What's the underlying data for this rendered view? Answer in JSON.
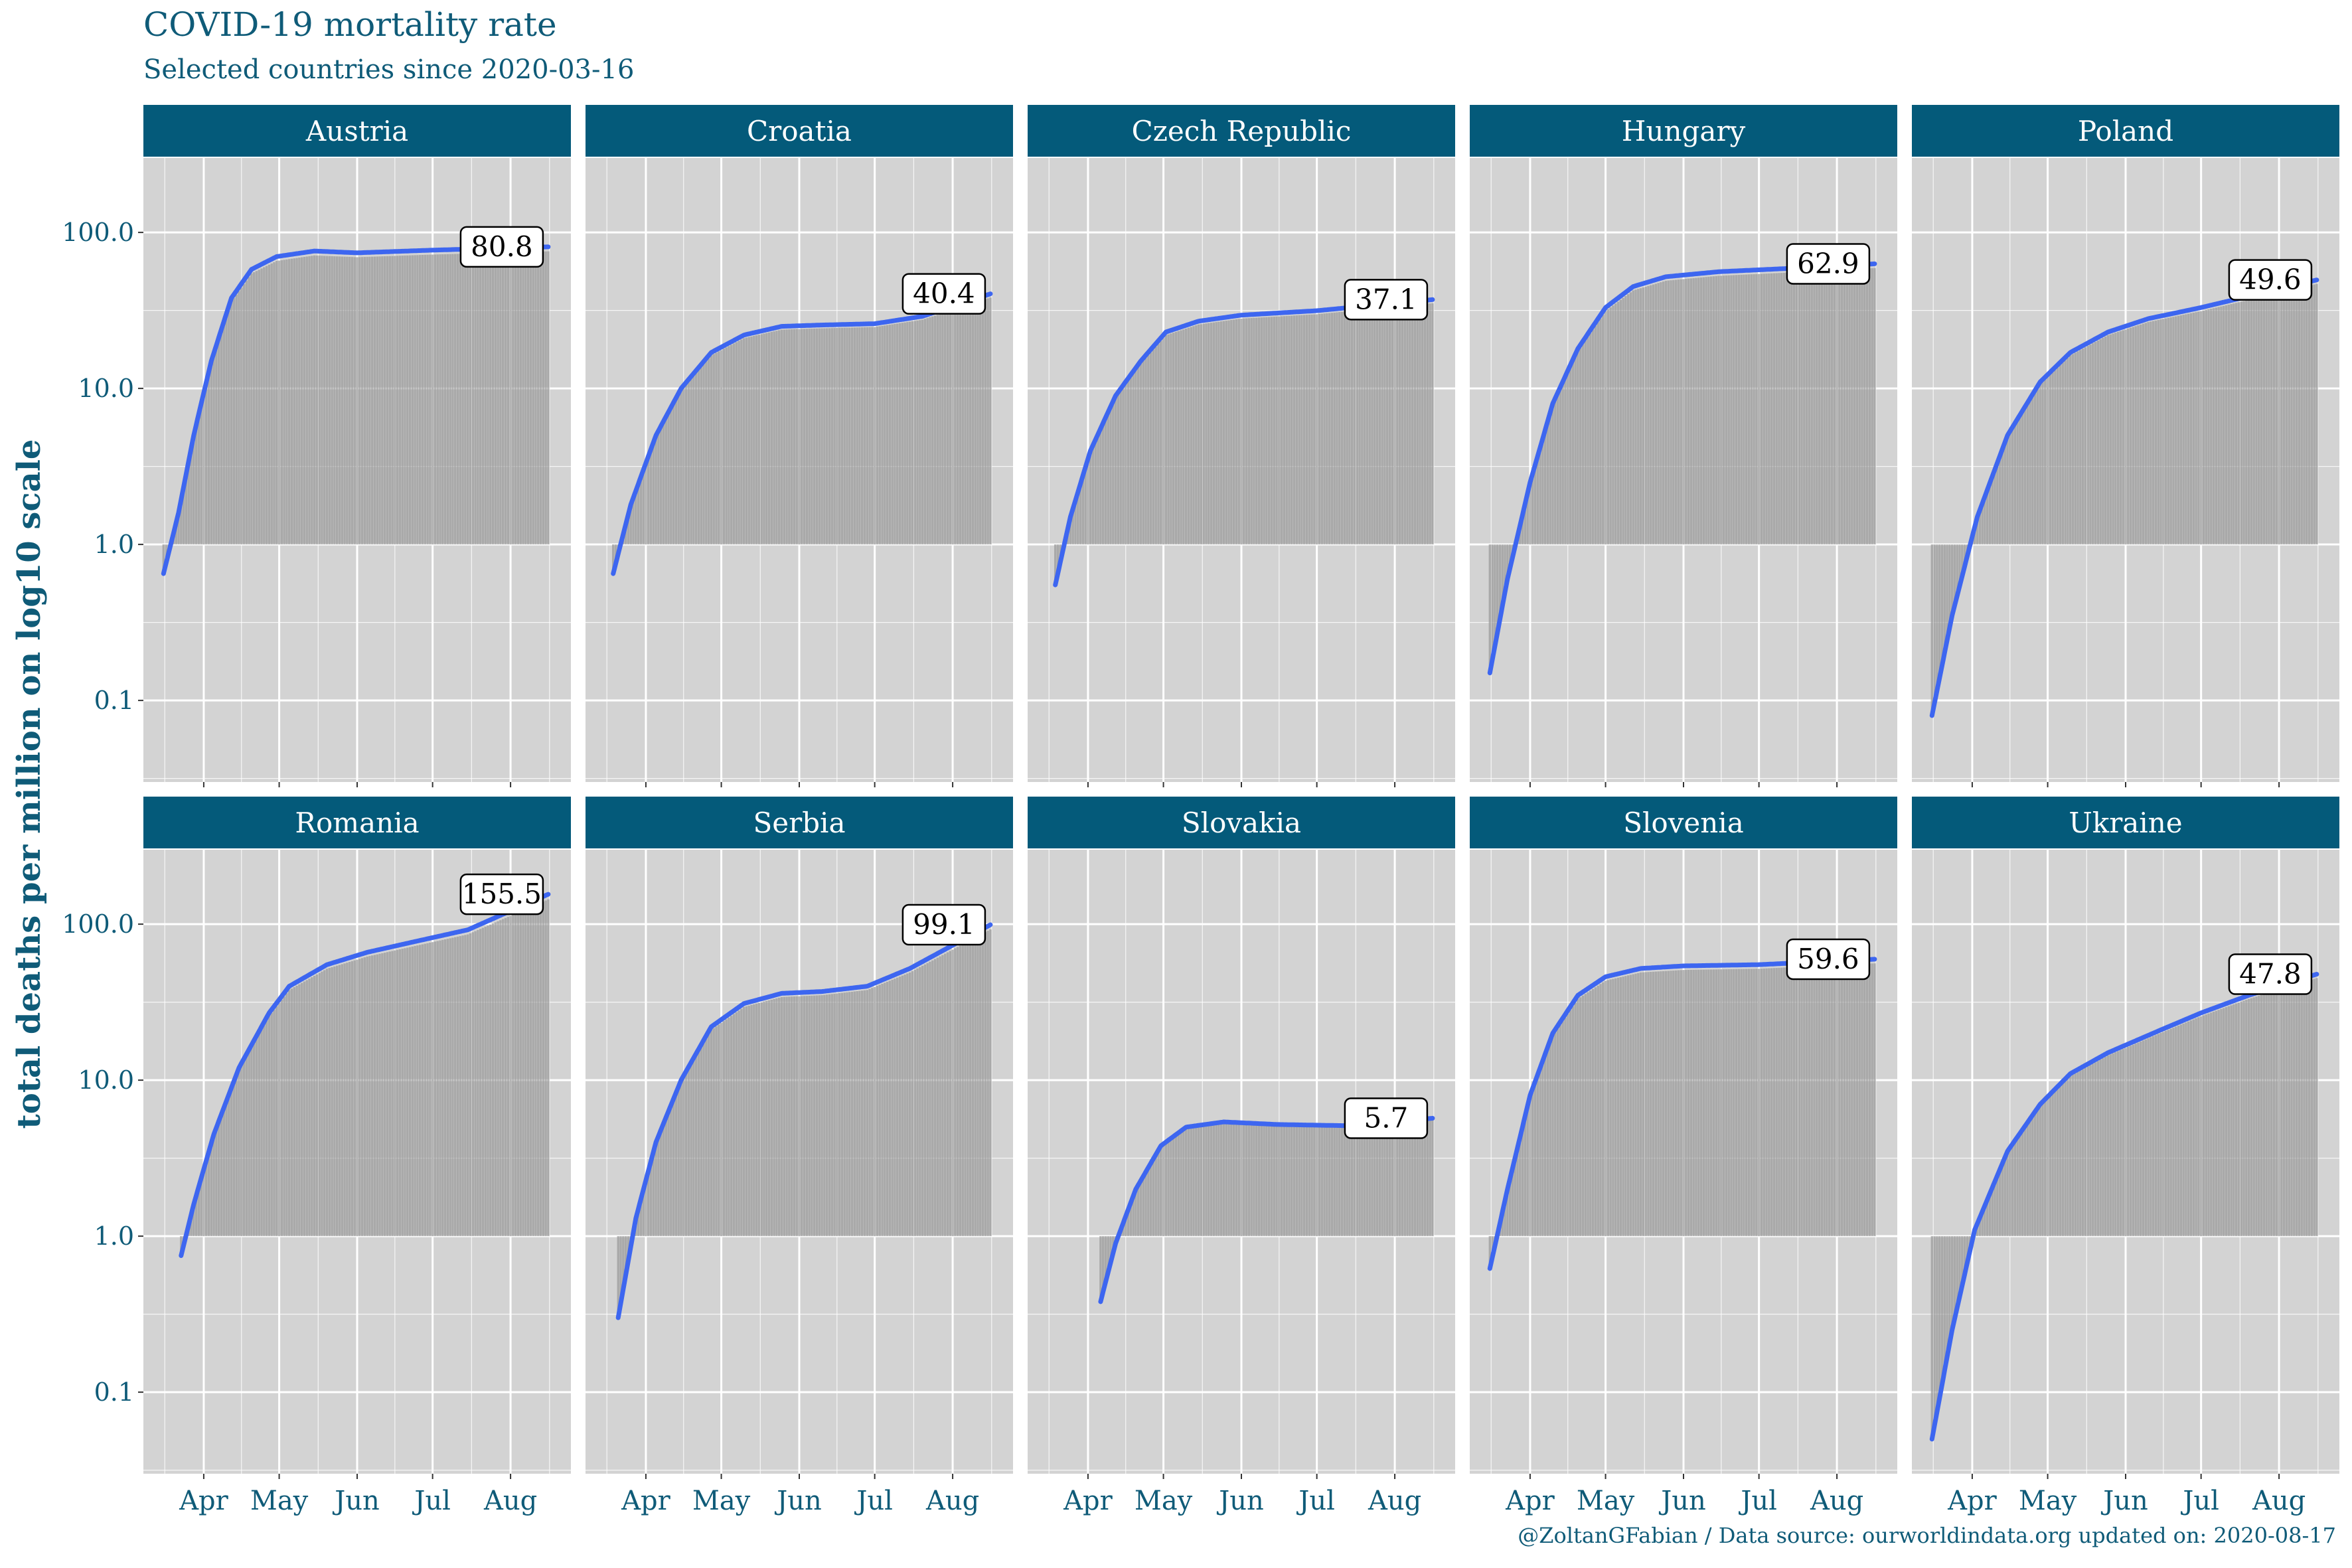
{
  "title": "COVID-19 mortality rate",
  "subtitle": "Selected countries since 2020-03-16",
  "caption": "@ZoltanGFabian / Data source: ourworldindata.org updated on: 2020-08-17",
  "colors": {
    "strip": "#045a7a",
    "panel": "#d3d3d3",
    "grid": "#ffffff",
    "bar": "#9b9b9b",
    "line": "#3d66f0",
    "text": "#0f5b78"
  },
  "chart_data": {
    "type": "bar",
    "overlay": "smoothed line",
    "scale_y": "log10",
    "ylabel": "total deaths per million on log10 scale",
    "xlabel": "",
    "ylim": [
      0.03,
      300
    ],
    "y_ticks": [
      0.1,
      1.0,
      10.0,
      100.0
    ],
    "y_tick_labels": [
      "0.1",
      "1.0",
      "10.0",
      "100.0"
    ],
    "x_ticks": [
      "Apr",
      "May",
      "Jun",
      "Jul",
      "Aug"
    ],
    "x_tick_dates": [
      "2020-04-01",
      "2020-05-01",
      "2020-06-01",
      "2020-07-01",
      "2020-08-01"
    ],
    "xlim": [
      "2020-03-08",
      "2020-08-25"
    ],
    "facets": [
      {
        "name": "Austria",
        "label": "80.8",
        "end_date": "2020-08-16",
        "curve": [
          [
            "2020-03-16",
            0.65
          ],
          [
            "2020-03-22",
            1.6
          ],
          [
            "2020-03-28",
            5
          ],
          [
            "2020-04-04",
            15
          ],
          [
            "2020-04-12",
            38
          ],
          [
            "2020-04-20",
            58
          ],
          [
            "2020-04-30",
            70
          ],
          [
            "2020-05-15",
            76
          ],
          [
            "2020-06-01",
            74
          ],
          [
            "2020-07-01",
            77
          ],
          [
            "2020-08-16",
            80.8
          ]
        ]
      },
      {
        "name": "Croatia",
        "label": "40.4",
        "end_date": "2020-08-16",
        "curve": [
          [
            "2020-03-19",
            0.65
          ],
          [
            "2020-03-26",
            1.8
          ],
          [
            "2020-04-05",
            5
          ],
          [
            "2020-04-15",
            10
          ],
          [
            "2020-04-27",
            17
          ],
          [
            "2020-05-10",
            22
          ],
          [
            "2020-05-25",
            25
          ],
          [
            "2020-06-10",
            25.5
          ],
          [
            "2020-07-01",
            26
          ],
          [
            "2020-07-20",
            29
          ],
          [
            "2020-08-16",
            40.4
          ]
        ]
      },
      {
        "name": "Czech Republic",
        "label": "37.1",
        "end_date": "2020-08-16",
        "curve": [
          [
            "2020-03-19",
            0.55
          ],
          [
            "2020-03-25",
            1.5
          ],
          [
            "2020-04-02",
            4
          ],
          [
            "2020-04-12",
            9
          ],
          [
            "2020-04-22",
            15
          ],
          [
            "2020-05-02",
            23
          ],
          [
            "2020-05-15",
            27
          ],
          [
            "2020-06-01",
            29.5
          ],
          [
            "2020-07-01",
            31.5
          ],
          [
            "2020-08-16",
            37.1
          ]
        ]
      },
      {
        "name": "Hungary",
        "label": "62.9",
        "end_date": "2020-08-16",
        "curve": [
          [
            "2020-03-16",
            0.15
          ],
          [
            "2020-03-23",
            0.6
          ],
          [
            "2020-04-01",
            2.5
          ],
          [
            "2020-04-10",
            8
          ],
          [
            "2020-04-20",
            18
          ],
          [
            "2020-05-01",
            33
          ],
          [
            "2020-05-12",
            45
          ],
          [
            "2020-05-25",
            52
          ],
          [
            "2020-06-15",
            56
          ],
          [
            "2020-07-15",
            59
          ],
          [
            "2020-08-16",
            62.9
          ]
        ]
      },
      {
        "name": "Poland",
        "label": "49.6",
        "end_date": "2020-08-16",
        "curve": [
          [
            "2020-03-16",
            0.08
          ],
          [
            "2020-03-24",
            0.35
          ],
          [
            "2020-04-03",
            1.5
          ],
          [
            "2020-04-15",
            5
          ],
          [
            "2020-04-28",
            11
          ],
          [
            "2020-05-10",
            17
          ],
          [
            "2020-05-25",
            23
          ],
          [
            "2020-06-10",
            28
          ],
          [
            "2020-07-01",
            33
          ],
          [
            "2020-07-20",
            39
          ],
          [
            "2020-08-16",
            49.6
          ]
        ]
      },
      {
        "name": "Romania",
        "label": "155.5",
        "end_date": "2020-08-16",
        "curve": [
          [
            "2020-03-23",
            0.75
          ],
          [
            "2020-03-28",
            1.6
          ],
          [
            "2020-04-05",
            4.5
          ],
          [
            "2020-04-15",
            12
          ],
          [
            "2020-04-27",
            27
          ],
          [
            "2020-05-05",
            40
          ],
          [
            "2020-05-20",
            55
          ],
          [
            "2020-06-05",
            66
          ],
          [
            "2020-06-25",
            78
          ],
          [
            "2020-07-15",
            92
          ],
          [
            "2020-08-16",
            155.5
          ]
        ]
      },
      {
        "name": "Serbia",
        "label": "99.1",
        "end_date": "2020-08-16",
        "curve": [
          [
            "2020-03-21",
            0.3
          ],
          [
            "2020-03-28",
            1.3
          ],
          [
            "2020-04-05",
            4
          ],
          [
            "2020-04-15",
            10
          ],
          [
            "2020-04-27",
            22
          ],
          [
            "2020-05-10",
            31
          ],
          [
            "2020-05-25",
            36
          ],
          [
            "2020-06-10",
            37
          ],
          [
            "2020-06-28",
            40
          ],
          [
            "2020-07-15",
            52
          ],
          [
            "2020-08-16",
            99.1
          ]
        ]
      },
      {
        "name": "Slovakia",
        "label": "5.7",
        "end_date": "2020-08-16",
        "curve": [
          [
            "2020-04-06",
            0.38
          ],
          [
            "2020-04-12",
            0.9
          ],
          [
            "2020-04-20",
            2
          ],
          [
            "2020-04-30",
            3.8
          ],
          [
            "2020-05-10",
            5
          ],
          [
            "2020-05-25",
            5.4
          ],
          [
            "2020-06-15",
            5.2
          ],
          [
            "2020-07-15",
            5.1
          ],
          [
            "2020-08-16",
            5.7
          ]
        ]
      },
      {
        "name": "Slovenia",
        "label": "59.6",
        "end_date": "2020-08-16",
        "curve": [
          [
            "2020-03-16",
            0.62
          ],
          [
            "2020-03-23",
            2
          ],
          [
            "2020-04-01",
            8
          ],
          [
            "2020-04-10",
            20
          ],
          [
            "2020-04-20",
            35
          ],
          [
            "2020-05-01",
            46
          ],
          [
            "2020-05-15",
            52
          ],
          [
            "2020-06-01",
            54
          ],
          [
            "2020-07-01",
            55
          ],
          [
            "2020-08-16",
            59.6
          ]
        ]
      },
      {
        "name": "Ukraine",
        "label": "47.8",
        "end_date": "2020-08-16",
        "curve": [
          [
            "2020-03-16",
            0.05
          ],
          [
            "2020-03-24",
            0.25
          ],
          [
            "2020-04-02",
            1.1
          ],
          [
            "2020-04-15",
            3.5
          ],
          [
            "2020-04-28",
            7
          ],
          [
            "2020-05-10",
            11
          ],
          [
            "2020-05-25",
            15
          ],
          [
            "2020-06-15",
            21
          ],
          [
            "2020-07-01",
            27
          ],
          [
            "2020-07-20",
            35
          ],
          [
            "2020-08-16",
            47.8
          ]
        ]
      }
    ]
  }
}
